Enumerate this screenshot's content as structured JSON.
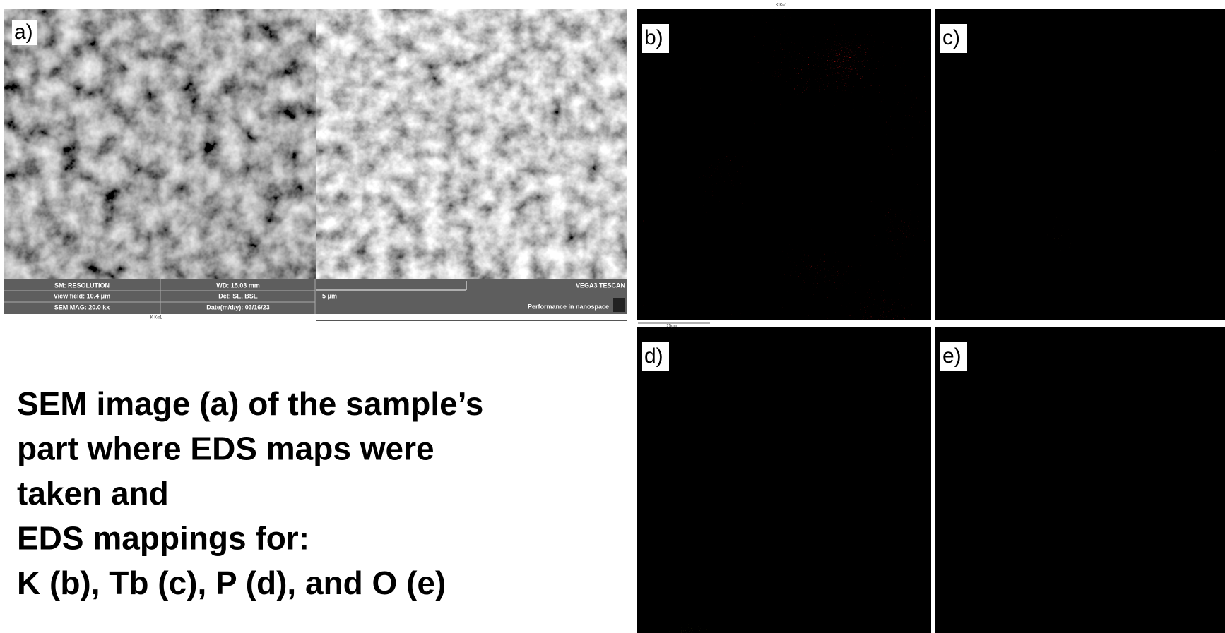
{
  "sem_image": {
    "label": "a)",
    "info_bar": [
      [
        "SM: RESOLUTION",
        "WD: 15.03 mm"
      ],
      [
        "View field: 10.4 μm",
        "Det: SE, BSE"
      ],
      [
        "SEM MAG: 20.0 kx",
        "Date(m/d/y): 03/16/23"
      ]
    ],
    "scale_bar": "5 μm",
    "brand": "VEGA3 TESCAN",
    "slogan": "Performance in nanospace",
    "footer": "K Kα1"
  },
  "eds_header": "K Kα1",
  "eds_scale": "25μm",
  "eds_maps": [
    {
      "label": "b)"
    },
    {
      "label": "c)"
    },
    {
      "label": "d)"
    },
    {
      "label": "e)"
    }
  ],
  "caption": [
    "SEM image (a) of the sample’s",
    "part where EDS maps were",
    "taken and",
    "EDS mappings for:",
    "K (b), Tb (c), P (d), and O (e)"
  ]
}
